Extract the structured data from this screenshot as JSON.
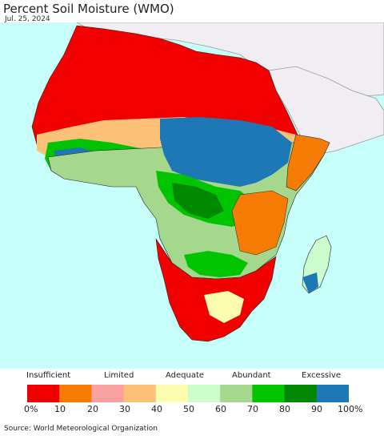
{
  "title": "Percent Soil Moisture (WMO)",
  "date": "Jul. 25, 2024",
  "legend": {
    "categories": [
      "Insufficient",
      "Limited",
      "Adequate",
      "Abundant",
      "Excessive"
    ],
    "ticks": [
      "0%",
      "10",
      "20",
      "30",
      "40",
      "50",
      "60",
      "70",
      "80",
      "90",
      "100%"
    ],
    "colors": [
      "#f20000",
      "#f67c05",
      "#f9a0a0",
      "#fdc079",
      "#fdfdb0",
      "#cdfccd",
      "#a5d88c",
      "#00c400",
      "#008900",
      "#1e78b5"
    ]
  },
  "colors": {
    "ocean": "#c7fffb",
    "landmass_outside": "#f1eef3",
    "border": "#222222"
  },
  "source": "Source: World Meteorological Organization"
}
